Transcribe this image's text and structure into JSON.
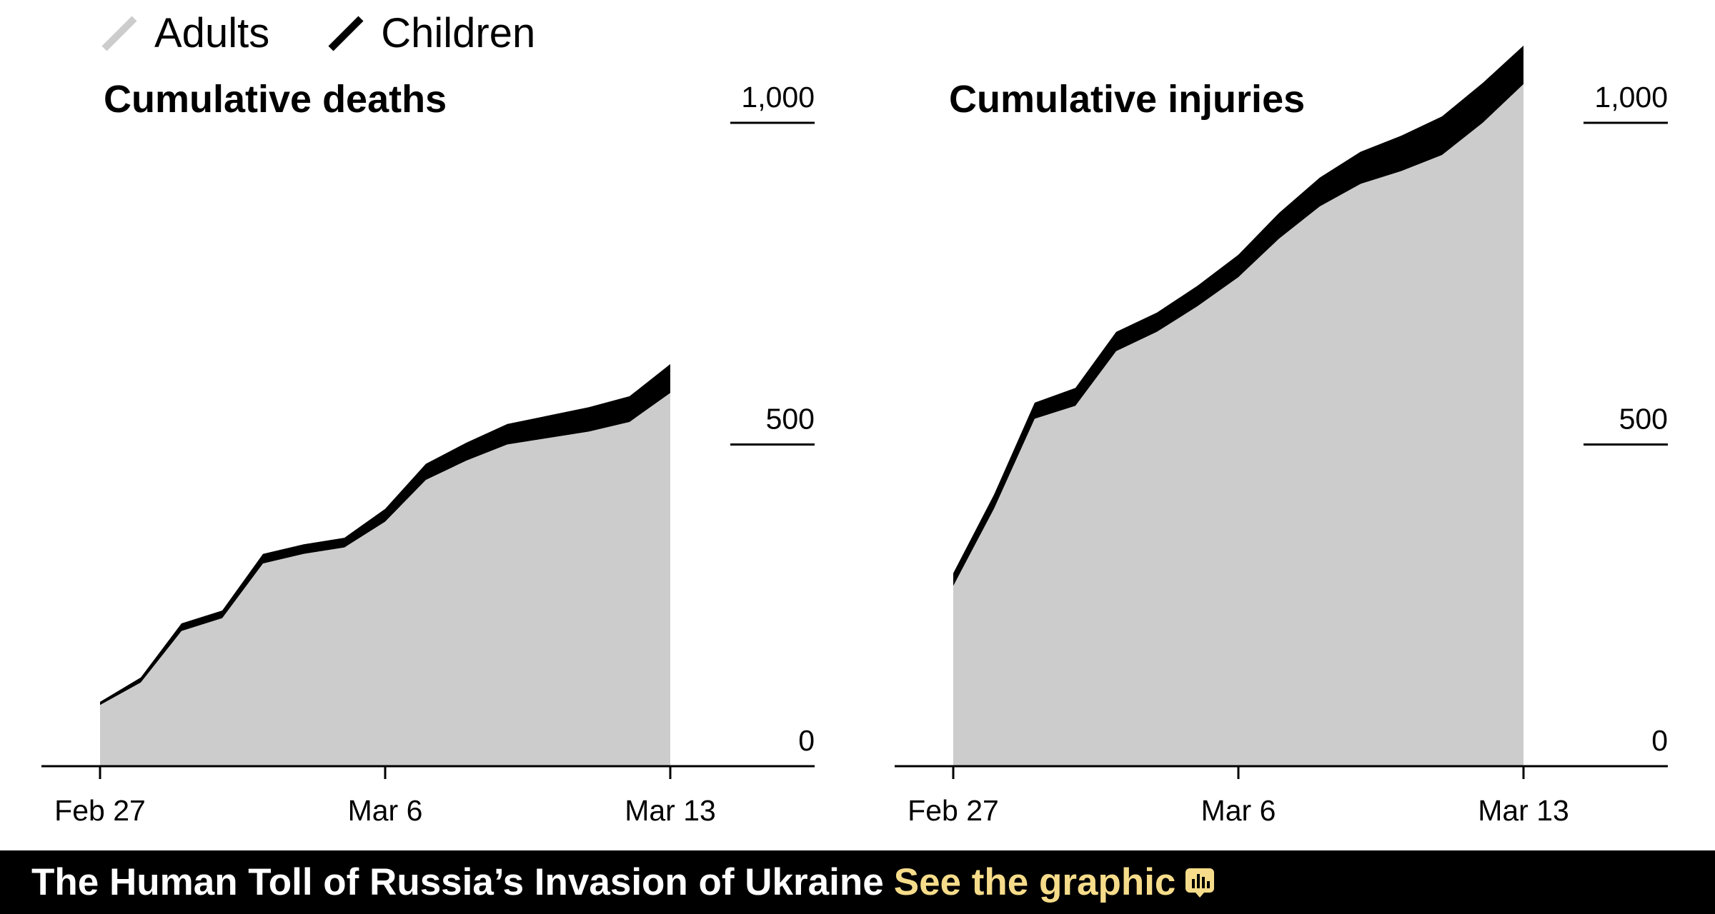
{
  "legend": {
    "adults_label": "Adults",
    "children_label": "Children"
  },
  "colors": {
    "adults": "#cccccc",
    "children": "#000000",
    "footer_bg": "#000000",
    "footer_link": "#f6dc8a"
  },
  "chart_data": [
    {
      "type": "area",
      "stacked": true,
      "title": "Cumulative deaths",
      "x": [
        "Feb 27",
        "Feb 28",
        "Mar 1",
        "Mar 2",
        "Mar 3",
        "Mar 4",
        "Mar 5",
        "Mar 6",
        "Mar 7",
        "Mar 8",
        "Mar 9",
        "Mar 10",
        "Mar 11",
        "Mar 12",
        "Mar 13"
      ],
      "xticks": [
        "Feb 27",
        "Mar 6",
        "Mar 13"
      ],
      "yticks": [
        "0",
        "500",
        "1,000"
      ],
      "ylim": [
        0,
        1000
      ],
      "series": [
        {
          "name": "Adults",
          "values": [
            95,
            130,
            210,
            230,
            315,
            330,
            340,
            380,
            445,
            475,
            500,
            510,
            520,
            535,
            580
          ]
        },
        {
          "name": "Children",
          "values": [
            5,
            8,
            12,
            12,
            15,
            15,
            15,
            20,
            25,
            28,
            32,
            35,
            38,
            40,
            45
          ]
        }
      ]
    },
    {
      "type": "area",
      "stacked": true,
      "title": "Cumulative injuries",
      "x": [
        "Feb 27",
        "Feb 28",
        "Mar 1",
        "Mar 2",
        "Mar 3",
        "Mar 4",
        "Mar 5",
        "Mar 6",
        "Mar 7",
        "Mar 8",
        "Mar 9",
        "Mar 10",
        "Mar 11",
        "Mar 12",
        "Mar 13"
      ],
      "xticks": [
        "Feb 27",
        "Mar 6",
        "Mar 13"
      ],
      "yticks": [
        "0",
        "500",
        "1,000"
      ],
      "ylim": [
        0,
        1000
      ],
      "series": [
        {
          "name": "Adults",
          "values": [
            280,
            400,
            540,
            560,
            645,
            675,
            715,
            760,
            820,
            870,
            905,
            925,
            950,
            1000,
            1060
          ]
        },
        {
          "name": "Children",
          "values": [
            20,
            22,
            25,
            28,
            30,
            30,
            32,
            35,
            40,
            45,
            50,
            55,
            60,
            62,
            60
          ]
        }
      ]
    }
  ],
  "footer": {
    "title": "The Human Toll of Russia’s Invasion of Ukraine",
    "link": "See the graphic",
    "icon": "chart-icon"
  }
}
